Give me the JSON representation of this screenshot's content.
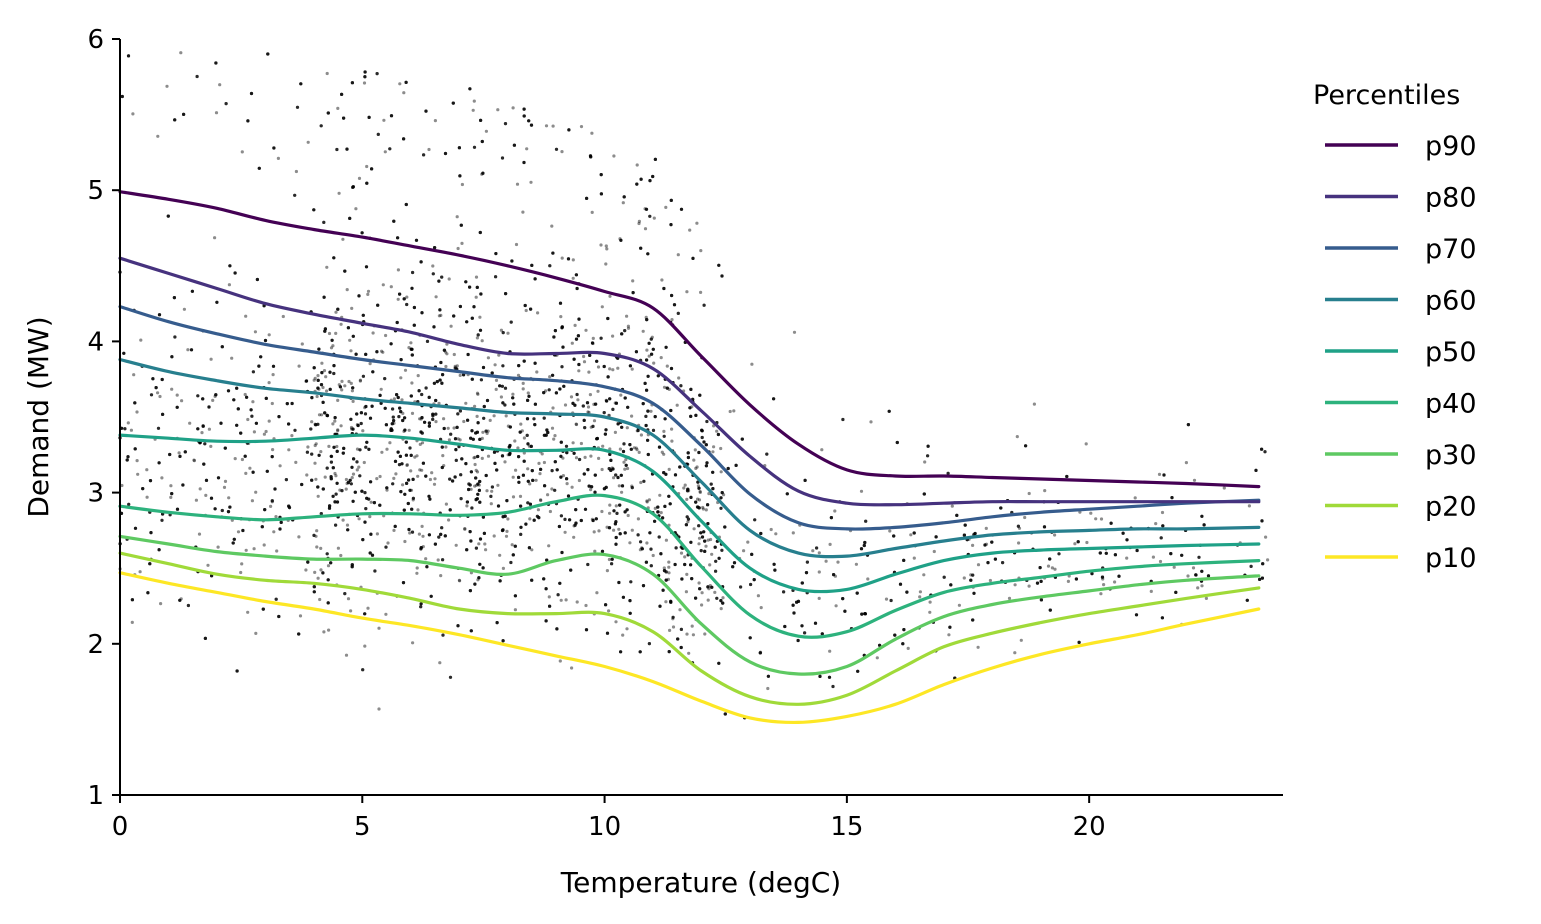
{
  "chart_data": {
    "type": "line",
    "xlabel": "Temperature (degC)",
    "ylabel": "Demand (MW)",
    "xlim": [
      0,
      24
    ],
    "ylim": [
      1,
      6
    ],
    "xticks": [
      "0",
      "5",
      "10",
      "15",
      "20"
    ],
    "yticks": [
      "1",
      "2",
      "3",
      "4",
      "5",
      "6"
    ],
    "grid": false,
    "legend": {
      "title": "Percentiles",
      "placement": "outside-right"
    },
    "x": [
      0,
      1,
      2,
      3,
      4,
      5,
      6,
      7,
      8,
      9,
      10,
      11,
      12,
      13,
      14,
      15,
      16,
      17,
      18,
      19,
      20,
      21,
      22,
      23.5
    ],
    "series": [
      {
        "name": "p90",
        "color": "#440154",
        "values": [
          4.99,
          4.94,
          4.88,
          4.8,
          4.74,
          4.69,
          4.63,
          4.57,
          4.5,
          4.42,
          4.33,
          4.22,
          3.9,
          3.58,
          3.32,
          3.15,
          3.11,
          3.11,
          3.1,
          3.09,
          3.08,
          3.07,
          3.06,
          3.04
        ]
      },
      {
        "name": "p80",
        "color": "#46327e",
        "values": [
          4.55,
          4.45,
          4.35,
          4.25,
          4.18,
          4.12,
          4.06,
          3.98,
          3.92,
          3.92,
          3.92,
          3.82,
          3.54,
          3.24,
          3.01,
          2.93,
          2.92,
          2.93,
          2.94,
          2.94,
          2.94,
          2.94,
          2.94,
          2.94
        ]
      },
      {
        "name": "p70",
        "color": "#365c8d",
        "values": [
          4.23,
          4.13,
          4.05,
          3.98,
          3.93,
          3.88,
          3.84,
          3.8,
          3.76,
          3.74,
          3.7,
          3.59,
          3.31,
          2.99,
          2.8,
          2.76,
          2.77,
          2.8,
          2.84,
          2.87,
          2.89,
          2.91,
          2.93,
          2.95
        ]
      },
      {
        "name": "p60",
        "color": "#277f8e",
        "values": [
          3.88,
          3.8,
          3.74,
          3.69,
          3.66,
          3.62,
          3.59,
          3.56,
          3.53,
          3.52,
          3.5,
          3.38,
          3.07,
          2.75,
          2.6,
          2.58,
          2.63,
          2.68,
          2.72,
          2.74,
          2.75,
          2.76,
          2.76,
          2.77
        ]
      },
      {
        "name": "p50",
        "color": "#1fa187",
        "values": [
          3.38,
          3.36,
          3.34,
          3.34,
          3.36,
          3.38,
          3.36,
          3.32,
          3.28,
          3.28,
          3.28,
          3.14,
          2.81,
          2.5,
          2.36,
          2.36,
          2.46,
          2.55,
          2.6,
          2.62,
          2.63,
          2.64,
          2.65,
          2.66
        ]
      },
      {
        "name": "p40",
        "color": "#2db27d",
        "values": [
          2.91,
          2.87,
          2.84,
          2.82,
          2.84,
          2.86,
          2.86,
          2.85,
          2.87,
          2.94,
          2.98,
          2.86,
          2.51,
          2.19,
          2.05,
          2.08,
          2.22,
          2.34,
          2.4,
          2.44,
          2.48,
          2.51,
          2.53,
          2.55
        ]
      },
      {
        "name": "p30",
        "color": "#5ec962",
        "values": [
          2.71,
          2.66,
          2.61,
          2.58,
          2.56,
          2.56,
          2.55,
          2.5,
          2.46,
          2.55,
          2.59,
          2.46,
          2.13,
          1.88,
          1.8,
          1.85,
          2.03,
          2.18,
          2.26,
          2.31,
          2.35,
          2.39,
          2.42,
          2.45
        ]
      },
      {
        "name": "p20",
        "color": "#a0da39",
        "values": [
          2.6,
          2.53,
          2.46,
          2.42,
          2.4,
          2.36,
          2.3,
          2.23,
          2.2,
          2.2,
          2.2,
          2.08,
          1.82,
          1.65,
          1.6,
          1.66,
          1.82,
          1.98,
          2.07,
          2.14,
          2.2,
          2.25,
          2.3,
          2.37
        ]
      },
      {
        "name": "p10",
        "color": "#fde725",
        "values": [
          2.47,
          2.4,
          2.34,
          2.28,
          2.23,
          2.17,
          2.12,
          2.06,
          1.99,
          1.92,
          1.85,
          1.75,
          1.62,
          1.51,
          1.48,
          1.52,
          1.6,
          1.73,
          1.84,
          1.93,
          2.0,
          2.06,
          2.13,
          2.23
        ]
      }
    ]
  }
}
